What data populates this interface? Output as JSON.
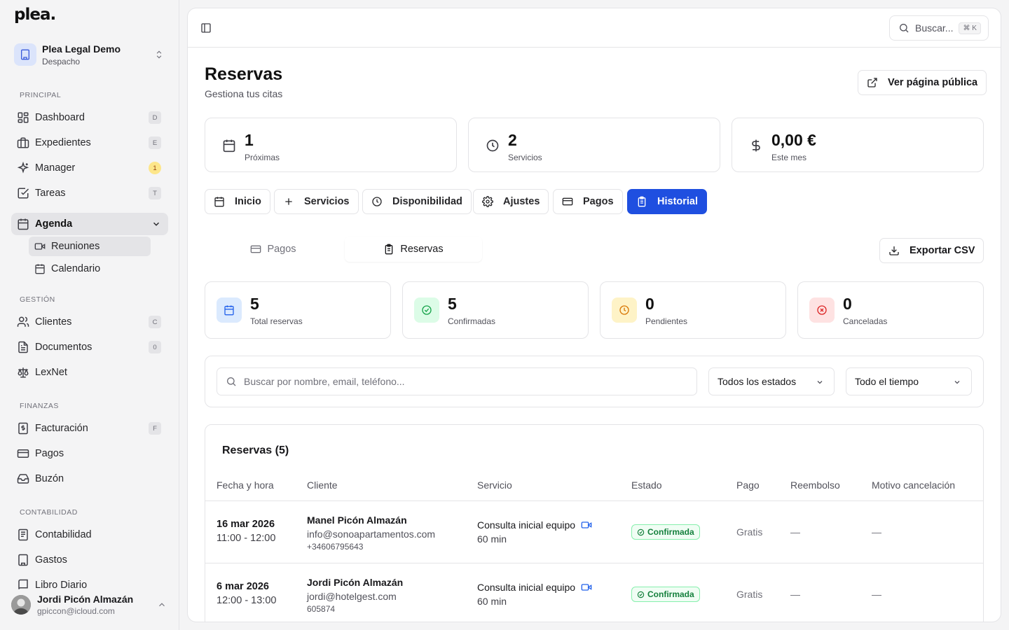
{
  "app": {
    "logo": "plea."
  },
  "org": {
    "name": "Plea Legal Demo",
    "type": "Despacho"
  },
  "sidebar": {
    "sections": {
      "principal": "PRINCIPAL",
      "gestion": "GESTIÓN",
      "finanzas": "FINANZAS",
      "contabilidad": "CONTABILIDAD"
    },
    "items": {
      "dashboard": {
        "label": "Dashboard",
        "kbd": "D"
      },
      "expedientes": {
        "label": "Expedientes",
        "kbd": "E"
      },
      "manager": {
        "label": "Manager",
        "badge": "1"
      },
      "tareas": {
        "label": "Tareas",
        "kbd": "T"
      },
      "agenda": {
        "label": "Agenda"
      },
      "reuniones": {
        "label": "Reuniones"
      },
      "calendario": {
        "label": "Calendario"
      },
      "clientes": {
        "label": "Clientes",
        "kbd": "C"
      },
      "documentos": {
        "label": "Documentos",
        "kbd": "0"
      },
      "lexnet": {
        "label": "LexNet"
      },
      "facturacion": {
        "label": "Facturación",
        "kbd": "F"
      },
      "pagos": {
        "label": "Pagos"
      },
      "buzon": {
        "label": "Buzón"
      },
      "contabilidad": {
        "label": "Contabilidad"
      },
      "gastos": {
        "label": "Gastos"
      },
      "partial": {
        "label": "Libro Diario"
      }
    }
  },
  "user": {
    "name": "Jordi Picón Almazán",
    "email": "gpiccon@icloud.com"
  },
  "topbar": {
    "search_placeholder": "Buscar...",
    "search_kbd": "⌘ K"
  },
  "page": {
    "title": "Reservas",
    "subtitle": "Gestiona tus citas",
    "public_button": "Ver página pública"
  },
  "stats": [
    {
      "value": "1",
      "label": "Próximas"
    },
    {
      "value": "2",
      "label": "Servicios"
    },
    {
      "value": "0,00 €",
      "label": "Este mes"
    }
  ],
  "tabs": [
    "Inicio",
    "Servicios",
    "Disponibilidad",
    "Ajustes",
    "Pagos",
    "Historial"
  ],
  "subtabs": [
    "Pagos",
    "Reservas"
  ],
  "export_button": "Exportar CSV",
  "kpis": [
    {
      "value": "5",
      "label": "Total reservas",
      "color": "#2563eb"
    },
    {
      "value": "5",
      "label": "Confirmadas",
      "color": "#16a34a"
    },
    {
      "value": "0",
      "label": "Pendientes",
      "color": "#d97706"
    },
    {
      "value": "0",
      "label": "Canceladas",
      "color": "#dc2626"
    }
  ],
  "filters": {
    "search_placeholder": "Buscar por nombre, email, teléfono...",
    "status": "Todos los estados",
    "time": "Todo el tiempo"
  },
  "table": {
    "caption": "Reservas (5)",
    "headers": [
      "Fecha y hora",
      "Cliente",
      "Servicio",
      "Estado",
      "Pago",
      "Reembolso",
      "Motivo cancelación"
    ],
    "rows": [
      {
        "date": "16 mar 2026",
        "time": "11:00 - 12:00",
        "client": "Manel Picón Almazán",
        "email": "info@sonoapartamentos.com",
        "phone": "+34606795643",
        "service": "Consulta inicial equipo",
        "duration": "60 min",
        "status": "Confirmada",
        "payment": "Gratis",
        "refund": "—",
        "reason": "—"
      },
      {
        "date": "6 mar 2026",
        "time": "12:00 - 13:00",
        "client": "Jordi Picón Almazán",
        "email": "jordi@hotelgest.com",
        "phone": "605874",
        "service": "Consulta inicial equipo",
        "duration": "60 min",
        "status": "Confirmada",
        "payment": "Gratis",
        "refund": "—",
        "reason": "—"
      }
    ]
  }
}
